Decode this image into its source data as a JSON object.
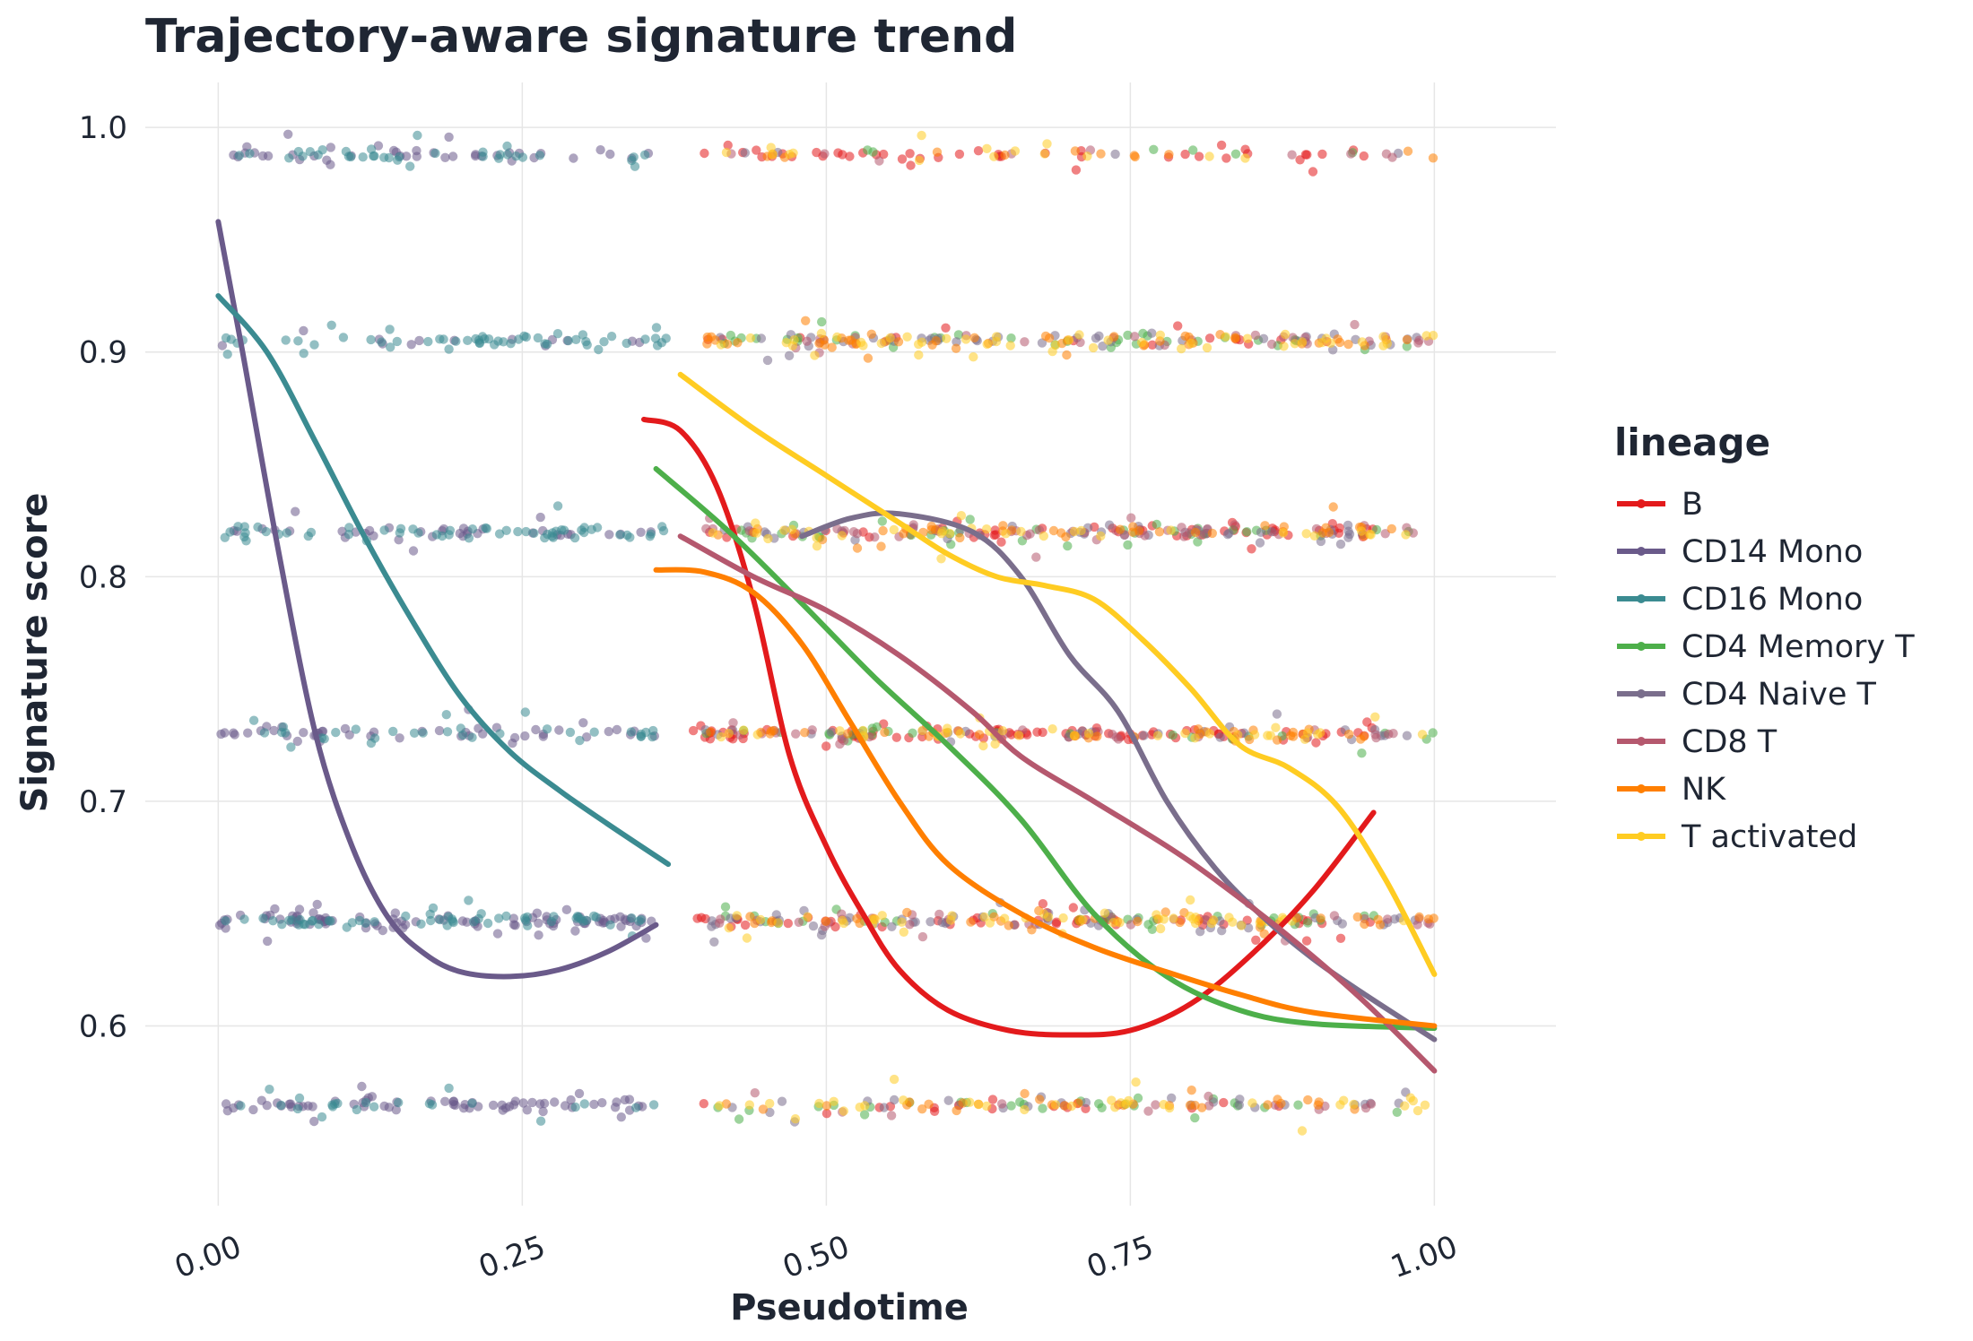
{
  "chart_data": {
    "type": "scatter",
    "title": "Trajectory-aware signature trend",
    "xlabel": "Pseudotime",
    "ylabel": "Signature score",
    "xlim": [
      -0.06,
      1.1
    ],
    "ylim": [
      0.52,
      1.02
    ],
    "x_ticks": [
      "0.00",
      "0.25",
      "0.50",
      "0.75",
      "1.00"
    ],
    "y_ticks": [
      "0.6",
      "0.7",
      "0.8",
      "0.9",
      "1.0"
    ],
    "grid": true,
    "legend": {
      "title": "lineage",
      "position": "right"
    },
    "series": [
      {
        "name": "B",
        "color": "#e31a1c",
        "x_range": [
          0.39,
          0.95
        ],
        "level_weights": [
          0.12,
          0.2,
          0.3,
          0.18,
          0.05,
          0.15
        ],
        "count": 260,
        "trend": [
          [
            0.35,
            0.87
          ],
          [
            0.38,
            0.865
          ],
          [
            0.41,
            0.84
          ],
          [
            0.44,
            0.79
          ],
          [
            0.47,
            0.72
          ],
          [
            0.5,
            0.68
          ],
          [
            0.53,
            0.65
          ],
          [
            0.56,
            0.625
          ],
          [
            0.6,
            0.607
          ],
          [
            0.65,
            0.598
          ],
          [
            0.7,
            0.596
          ],
          [
            0.75,
            0.598
          ],
          [
            0.8,
            0.61
          ],
          [
            0.85,
            0.632
          ],
          [
            0.9,
            0.66
          ],
          [
            0.95,
            0.695
          ]
        ]
      },
      {
        "name": "CD14 Mono",
        "color": "#6a5a8a",
        "x_range": [
          0.0,
          0.36
        ],
        "level_weights": [
          0.2,
          0.3,
          0.18,
          0.12,
          0.06,
          0.14
        ],
        "count": 300,
        "trend": [
          [
            0.0,
            0.958
          ],
          [
            0.02,
            0.9
          ],
          [
            0.05,
            0.81
          ],
          [
            0.08,
            0.73
          ],
          [
            0.11,
            0.68
          ],
          [
            0.14,
            0.648
          ],
          [
            0.17,
            0.632
          ],
          [
            0.2,
            0.624
          ],
          [
            0.24,
            0.622
          ],
          [
            0.28,
            0.625
          ],
          [
            0.32,
            0.633
          ],
          [
            0.36,
            0.645
          ]
        ]
      },
      {
        "name": "CD16 Mono",
        "color": "#3b8b91",
        "x_range": [
          0.0,
          0.37
        ],
        "level_weights": [
          0.12,
          0.2,
          0.15,
          0.2,
          0.18,
          0.15
        ],
        "count": 260,
        "trend": [
          [
            0.0,
            0.925
          ],
          [
            0.04,
            0.9
          ],
          [
            0.08,
            0.86
          ],
          [
            0.12,
            0.818
          ],
          [
            0.16,
            0.78
          ],
          [
            0.2,
            0.746
          ],
          [
            0.24,
            0.722
          ],
          [
            0.28,
            0.705
          ],
          [
            0.32,
            0.69
          ],
          [
            0.37,
            0.672
          ]
        ]
      },
      {
        "name": "CD4 Memory T",
        "color": "#4daf4a",
        "x_range": [
          0.4,
          1.0
        ],
        "level_weights": [
          0.14,
          0.22,
          0.18,
          0.22,
          0.2,
          0.04
        ],
        "count": 160,
        "trend": [
          [
            0.36,
            0.848
          ],
          [
            0.42,
            0.82
          ],
          [
            0.48,
            0.788
          ],
          [
            0.54,
            0.755
          ],
          [
            0.6,
            0.725
          ],
          [
            0.66,
            0.692
          ],
          [
            0.72,
            0.65
          ],
          [
            0.78,
            0.622
          ],
          [
            0.84,
            0.607
          ],
          [
            0.9,
            0.601
          ],
          [
            1.0,
            0.599
          ]
        ]
      },
      {
        "name": "CD4 Naive T",
        "color": "#7a6e8c",
        "x_range": [
          0.4,
          1.0
        ],
        "level_weights": [
          0.14,
          0.22,
          0.15,
          0.22,
          0.22,
          0.05
        ],
        "count": 200,
        "trend": [
          [
            0.48,
            0.818
          ],
          [
            0.52,
            0.826
          ],
          [
            0.56,
            0.828
          ],
          [
            0.62,
            0.82
          ],
          [
            0.66,
            0.8
          ],
          [
            0.7,
            0.765
          ],
          [
            0.74,
            0.74
          ],
          [
            0.78,
            0.7
          ],
          [
            0.82,
            0.67
          ],
          [
            0.86,
            0.648
          ],
          [
            0.9,
            0.63
          ],
          [
            0.94,
            0.615
          ],
          [
            1.0,
            0.594
          ]
        ]
      },
      {
        "name": "CD8 T",
        "color": "#b5586e",
        "x_range": [
          0.4,
          1.0
        ],
        "level_weights": [
          0.14,
          0.22,
          0.18,
          0.22,
          0.2,
          0.04
        ],
        "count": 160,
        "trend": [
          [
            0.38,
            0.818
          ],
          [
            0.44,
            0.8
          ],
          [
            0.5,
            0.785
          ],
          [
            0.56,
            0.765
          ],
          [
            0.62,
            0.74
          ],
          [
            0.66,
            0.72
          ],
          [
            0.72,
            0.7
          ],
          [
            0.78,
            0.68
          ],
          [
            0.82,
            0.665
          ],
          [
            0.88,
            0.64
          ],
          [
            0.94,
            0.612
          ],
          [
            1.0,
            0.58
          ]
        ]
      },
      {
        "name": "NK",
        "color": "#ff7f00",
        "x_range": [
          0.4,
          1.0
        ],
        "level_weights": [
          0.14,
          0.22,
          0.18,
          0.22,
          0.2,
          0.04
        ],
        "count": 200,
        "trend": [
          [
            0.36,
            0.803
          ],
          [
            0.4,
            0.802
          ],
          [
            0.44,
            0.793
          ],
          [
            0.48,
            0.77
          ],
          [
            0.52,
            0.735
          ],
          [
            0.56,
            0.7
          ],
          [
            0.6,
            0.672
          ],
          [
            0.66,
            0.65
          ],
          [
            0.72,
            0.635
          ],
          [
            0.78,
            0.624
          ],
          [
            0.84,
            0.614
          ],
          [
            0.9,
            0.606
          ],
          [
            1.0,
            0.6
          ]
        ]
      },
      {
        "name": "T activated",
        "color": "#ffcc22",
        "x_range": [
          0.4,
          1.0
        ],
        "level_weights": [
          0.18,
          0.22,
          0.16,
          0.18,
          0.16,
          0.1
        ],
        "count": 220,
        "trend": [
          [
            0.38,
            0.89
          ],
          [
            0.44,
            0.866
          ],
          [
            0.5,
            0.845
          ],
          [
            0.56,
            0.824
          ],
          [
            0.6,
            0.81
          ],
          [
            0.64,
            0.8
          ],
          [
            0.68,
            0.796
          ],
          [
            0.72,
            0.79
          ],
          [
            0.76,
            0.772
          ],
          [
            0.8,
            0.75
          ],
          [
            0.84,
            0.725
          ],
          [
            0.88,
            0.715
          ],
          [
            0.92,
            0.698
          ],
          [
            0.96,
            0.665
          ],
          [
            1.0,
            0.623
          ]
        ]
      }
    ],
    "score_levels": [
      0.565,
      0.647,
      0.73,
      0.82,
      0.905,
      0.988
    ]
  }
}
